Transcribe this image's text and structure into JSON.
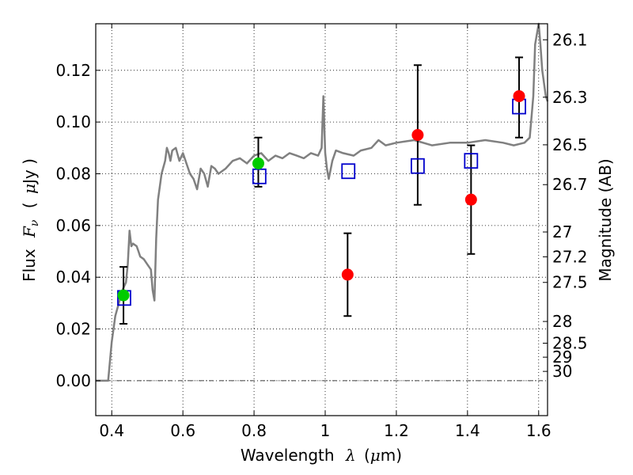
{
  "chart_data": {
    "type": "scatter",
    "xlabel": {
      "prefix": "Wavelength",
      "symbol": "λ",
      "unit_open": "(",
      "unit_mu": "μ",
      "unit_rest": "m)"
    },
    "ylabel": {
      "prefix": "Flux",
      "symbol": "F",
      "subscript": "ν",
      "unit_open": "(",
      "unit_mu": "μ",
      "unit_rest": "Jy )"
    },
    "y2label": "Magnitude (AB)",
    "xlim": [
      0.355,
      1.625
    ],
    "ylim": [
      -0.0135,
      0.138
    ],
    "grid": true,
    "x_ticks": [
      {
        "value": 0.4,
        "label": "0.4"
      },
      {
        "value": 0.6,
        "label": "0.6"
      },
      {
        "value": 0.8,
        "label": "0.8"
      },
      {
        "value": 1.0,
        "label": "1"
      },
      {
        "value": 1.2,
        "label": "1.2"
      },
      {
        "value": 1.4,
        "label": "1.4"
      },
      {
        "value": 1.6,
        "label": "1.6"
      }
    ],
    "y_ticks": [
      {
        "value": 0.0,
        "label": "0.00"
      },
      {
        "value": 0.02,
        "label": "0.02"
      },
      {
        "value": 0.04,
        "label": "0.04"
      },
      {
        "value": 0.06,
        "label": "0.06"
      },
      {
        "value": 0.08,
        "label": "0.08"
      },
      {
        "value": 0.1,
        "label": "0.10"
      },
      {
        "value": 0.12,
        "label": "0.12"
      }
    ],
    "mag_ticks": [
      {
        "flux": 0.1318,
        "label": "26.1"
      },
      {
        "flux": 0.1096,
        "label": "26.3"
      },
      {
        "flux": 0.0912,
        "label": "26.5"
      },
      {
        "flux": 0.0758,
        "label": "26.7"
      },
      {
        "flux": 0.0575,
        "label": "27"
      },
      {
        "flux": 0.0479,
        "label": "27.2"
      },
      {
        "flux": 0.038,
        "label": "27.5"
      },
      {
        "flux": 0.0229,
        "label": "28"
      },
      {
        "flux": 0.0145,
        "label": "28.5"
      },
      {
        "flux": 0.0091,
        "label": "29"
      },
      {
        "flux": 0.0036,
        "label": "30"
      }
    ],
    "colors": {
      "spectrum": "#808080",
      "model_box": "#0000cc",
      "red_point": "#ff0000",
      "green_point": "#00cc00",
      "error_bar": "#000000",
      "grid": "#000000"
    },
    "sed_spectrum": {
      "x": [
        0.355,
        0.38,
        0.39,
        0.4,
        0.41,
        0.42,
        0.43,
        0.44,
        0.445,
        0.45,
        0.455,
        0.46,
        0.47,
        0.475,
        0.48,
        0.49,
        0.5,
        0.51,
        0.515,
        0.52,
        0.525,
        0.53,
        0.54,
        0.55,
        0.555,
        0.56,
        0.565,
        0.57,
        0.58,
        0.59,
        0.6,
        0.61,
        0.62,
        0.63,
        0.64,
        0.65,
        0.66,
        0.67,
        0.68,
        0.69,
        0.7,
        0.72,
        0.74,
        0.76,
        0.78,
        0.8,
        0.82,
        0.84,
        0.86,
        0.88,
        0.9,
        0.92,
        0.94,
        0.96,
        0.98,
        0.99,
        0.995,
        1.0,
        1.005,
        1.01,
        1.02,
        1.03,
        1.05,
        1.08,
        1.1,
        1.13,
        1.15,
        1.17,
        1.2,
        1.25,
        1.3,
        1.35,
        1.4,
        1.45,
        1.5,
        1.53,
        1.56,
        1.575,
        1.585,
        1.59,
        1.6,
        1.605,
        1.61,
        1.62,
        1.625
      ],
      "y": [
        0.0,
        0.0,
        0.0,
        0.015,
        0.025,
        0.03,
        0.035,
        0.038,
        0.045,
        0.058,
        0.052,
        0.053,
        0.052,
        0.05,
        0.048,
        0.047,
        0.045,
        0.043,
        0.035,
        0.031,
        0.055,
        0.07,
        0.08,
        0.085,
        0.09,
        0.088,
        0.085,
        0.089,
        0.09,
        0.085,
        0.088,
        0.084,
        0.08,
        0.078,
        0.074,
        0.082,
        0.08,
        0.075,
        0.083,
        0.082,
        0.08,
        0.082,
        0.085,
        0.086,
        0.084,
        0.087,
        0.088,
        0.085,
        0.087,
        0.086,
        0.088,
        0.087,
        0.086,
        0.088,
        0.087,
        0.09,
        0.11,
        0.088,
        0.082,
        0.078,
        0.085,
        0.089,
        0.088,
        0.087,
        0.089,
        0.09,
        0.093,
        0.091,
        0.092,
        0.093,
        0.091,
        0.092,
        0.092,
        0.093,
        0.092,
        0.091,
        0.092,
        0.094,
        0.11,
        0.13,
        0.14,
        0.13,
        0.12,
        0.11,
        0.108
      ]
    },
    "model_points": {
      "x": [
        0.435,
        0.815,
        1.065,
        1.26,
        1.41,
        1.545
      ],
      "y": [
        0.032,
        0.079,
        0.081,
        0.083,
        0.085,
        0.106
      ]
    },
    "observed_points": [
      {
        "x": 0.433,
        "y": 0.033,
        "yerr_low": 0.022,
        "yerr_high": 0.044,
        "color": "green"
      },
      {
        "x": 0.812,
        "y": 0.084,
        "yerr_low": 0.075,
        "yerr_high": 0.094,
        "color": "green"
      },
      {
        "x": 1.063,
        "y": 0.041,
        "yerr_low": 0.025,
        "yerr_high": 0.057,
        "color": "red"
      },
      {
        "x": 1.26,
        "y": 0.095,
        "yerr_low": 0.068,
        "yerr_high": 0.122,
        "color": "red"
      },
      {
        "x": 1.41,
        "y": 0.07,
        "yerr_low": 0.049,
        "yerr_high": 0.091,
        "color": "red"
      },
      {
        "x": 1.545,
        "y": 0.11,
        "yerr_low": 0.094,
        "yerr_high": 0.125,
        "color": "red"
      }
    ]
  }
}
